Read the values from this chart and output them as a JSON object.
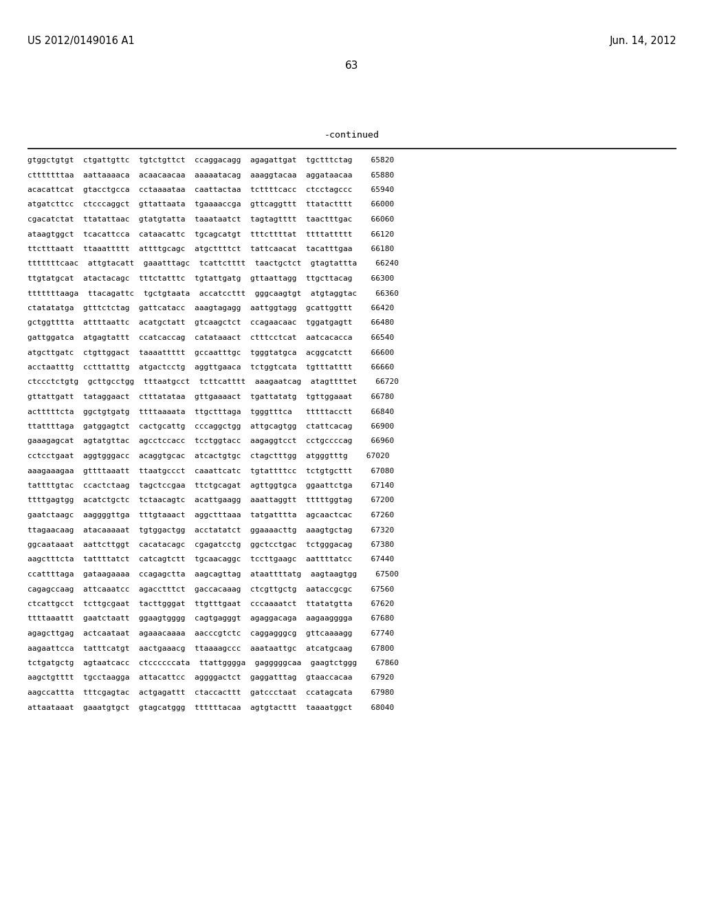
{
  "header_left": "US 2012/0149016 A1",
  "header_right": "Jun. 14, 2012",
  "page_number": "63",
  "continued_label": "-continued",
  "background_color": "#ffffff",
  "text_color": "#000000",
  "sequence_lines": [
    "gtggctgtgt  ctgattgttc  tgtctgttct  ccaggacagg  agagattgat  tgctttctag    65820",
    "ctttttttaa  aattaaaaca  acaacaacaa  aaaaatacag  aaaggtacaa  aggataacaa    65880",
    "acacattcat  gtacctgcca  cctaaaataa  caattactaa  tcttttcacc  ctcctagccc    65940",
    "atgatcttcc  ctcccaggct  gttattaata  tgaaaaccga  gttcaggttt  ttatactttt    66000",
    "cgacatctat  ttatattaac  gtatgtatta  taaataatct  tagtagtttt  taactttgac    66060",
    "ataagtggct  tcacattcca  cataacattc  tgcagcatgt  tttcttttat  ttttattttt    66120",
    "ttctttaatt  ttaaattttt  attttgcagc  atgcttttct  tattcaacat  tacatttgaa    66180",
    "tttttttcaac  attgtacatt  gaaatttagc  tcattctttt  taactgctct  gtagtattta    66240",
    "ttgtatgcat  atactacagc  tttctatttc  tgtattgatg  gttaattagg  ttgcttacag    66300",
    "tttttttaaga  ttacagattc  tgctgtaata  accatccttt  gggcaagtgt  atgtaggtac    66360",
    "ctatatatga  gtttctctag  gattcatacc  aaagtagagg  aattggtagg  gcattggttt    66420",
    "gctggtttta  attttaattc  acatgctatt  gtcaagctct  ccagaacaac  tggatgagtt    66480",
    "gattggatca  atgagtattt  ccatcaccag  catataaact  ctttcctcat  aatcacacca    66540",
    "atgcttgatc  ctgttggact  taaaattttt  gccaatttgc  tgggtatgca  acggcatctt    66600",
    "acctaatttg  cctttatttg  atgactcctg  aggttgaaca  tctggtcata  tgtttatttt    66660",
    "ctccctctgtg  gcttgcctgg  tttaatgcct  tcttcatttt  aaagaatcag  atagttttet    66720",
    "gttattgatt  tataggaact  ctttatataa  gttgaaaact  tgattatatg  tgttggaaat    66780",
    "actttttcta  ggctgtgatg  ttttaaaata  ttgctttaga  tgggtttca   tttttacctt    66840",
    "ttattttaga  gatggagtct  cactgcattg  cccaggctgg  attgcagtgg  ctattcacag    66900",
    "gaaagagcat  agtatgttac  agcctccacc  tcctggtacc  aagaggtcct  cctgccccag    66960",
    "cctcctgaat  aggtgggacc  acaggtgcac  atcactgtgc  ctagctttgg  atgggtttg    67020",
    "aaagaaagaa  gttttaaatt  ttaatgccct  caaattcatc  tgtattttcc  tctgtgcttt    67080",
    "tattttgtac  ccactctaag  tagctccgaa  ttctgcagat  agttggtgca  ggaattctga    67140",
    "ttttgagtgg  acatctgctc  tctaacagtc  acattgaagg  aaattaggtt  tttttggtag    67200",
    "gaatctaagc  aaggggttga  tttgtaaact  aggctttaaa  tatgatttta  agcaactcac    67260",
    "ttagaacaag  atacaaaaat  tgtggactgg  acctatatct  ggaaaacttg  aaagtgctag    67320",
    "ggcaataaat  aattcttggt  cacatacagc  cgagatcctg  ggctcctgac  tctgggacag    67380",
    "aagctttcta  tattttatct  catcagtctt  tgcaacaggc  tccttgaagc  aattttatcc    67440",
    "ccattttaga  gataagaaaa  ccagagctta  aagcagttag  ataattttatg  aagtaagtgg    67500",
    "cagagccaag  attcaaatcc  agacctttct  gaccacaaag  ctcgttgctg  aataccgcgc    67560",
    "ctcattgcct  tcttgcgaat  tacttgggat  ttgtttgaat  cccaaaatct  ttatatgtta    67620",
    "ttttaaattt  gaatctaatt  ggaagtgggg  cagtgagggt  agaggacaga  aagaagggga    67680",
    "agagcttgag  actcaataat  agaaacaaaa  aacccgtctc  caggagggcg  gttcaaaagg    67740",
    "aagaattcca  tatttcatgt  aactgaaacg  ttaaaagccc  aaataattgc  atcatgcaag    67800",
    "tctgatgctg  agtaatcacc  ctccccccata  ttattgggga  gagggggcaa  gaagtctggg    67860",
    "aagctgtttt  tgcctaagga  attacattcc  aggggactct  gaggatttag  gtaaccacaa    67920",
    "aagccattta  tttcgagtac  actgagattt  ctaccacttt  gatccctaat  ccatagcata    67980",
    "attaataaat  gaaatgtgct  gtagcatggg  ttttttacaa  agtgtacttt  taaaatggct    68040"
  ]
}
